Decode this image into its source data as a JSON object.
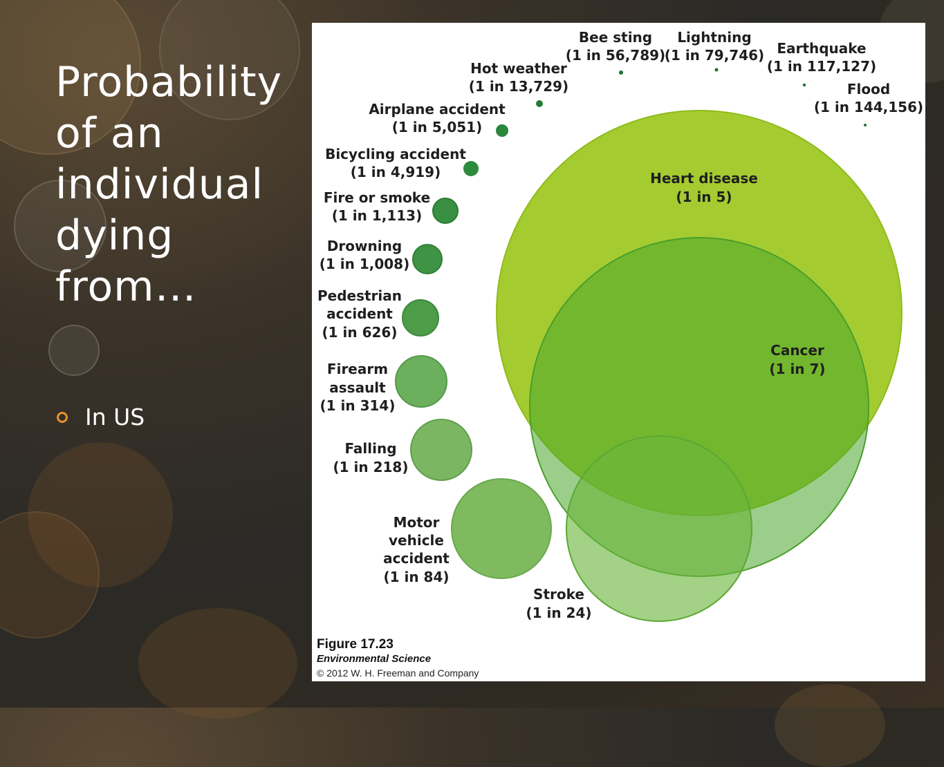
{
  "slide": {
    "title": "Probability of an individual dying from…",
    "bullets": [
      "In US"
    ]
  },
  "colors": {
    "heart_disease": "#9cc81f",
    "cancer": "#53ab2c",
    "stroke": "#7dbd3c",
    "dark_green": "#2e8b3e",
    "mid_green": "#4a9e48",
    "light_green": "#6fb35e",
    "bullet_accent": "#e8922a"
  },
  "causes": [
    {
      "id": "heart-disease",
      "name": "Heart disease",
      "odds": "(1 in 5)"
    },
    {
      "id": "cancer",
      "name": "Cancer",
      "odds": "(1 in 7)"
    },
    {
      "id": "stroke",
      "name": "Stroke",
      "odds": "(1 in 24)"
    },
    {
      "id": "motor-vehicle-accident",
      "name": "Motor vehicle accident",
      "odds": "(1 in 84)"
    },
    {
      "id": "falling",
      "name": "Falling",
      "odds": "(1 in 218)"
    },
    {
      "id": "firearm-assault",
      "name": "Firearm assault",
      "odds": "(1 in 314)"
    },
    {
      "id": "pedestrian-accident",
      "name": "Pedestrian accident",
      "odds": "(1 in 626)"
    },
    {
      "id": "drowning",
      "name": "Drowning",
      "odds": "(1 in 1,008)"
    },
    {
      "id": "fire-or-smoke",
      "name": "Fire or smoke",
      "odds": "(1 in 1,113)"
    },
    {
      "id": "bicycling-accident",
      "name": "Bicycling accident",
      "odds": "(1 in 4,919)"
    },
    {
      "id": "airplane-accident",
      "name": "Airplane accident",
      "odds": "(1 in 5,051)"
    },
    {
      "id": "hot-weather",
      "name": "Hot weather",
      "odds": "(1 in 13,729)"
    },
    {
      "id": "bee-sting",
      "name": "Bee sting",
      "odds": "(1 in 56,789)"
    },
    {
      "id": "lightning",
      "name": "Lightning",
      "odds": "(1 in 79,746)"
    },
    {
      "id": "earthquake",
      "name": "Earthquake",
      "odds": "(1 in 117,127)"
    },
    {
      "id": "flood",
      "name": "Flood",
      "odds": "(1 in 144,156)"
    }
  ],
  "figure_caption": {
    "title": "Figure 17.23",
    "subtitle": "Environmental Science",
    "copyright": "© 2012 W. H. Freeman and Company"
  }
}
